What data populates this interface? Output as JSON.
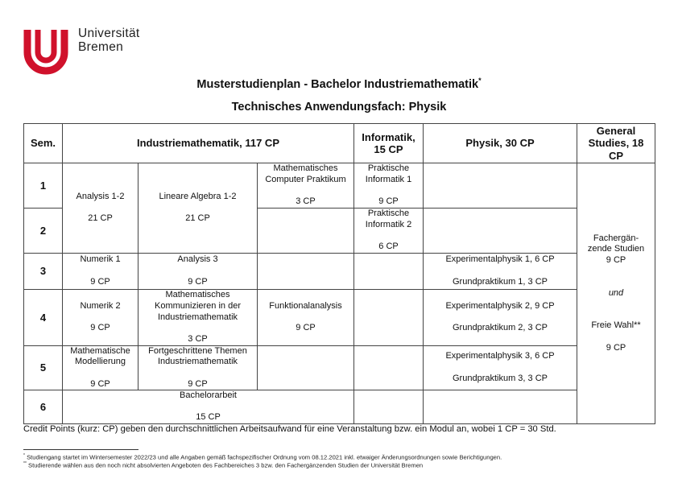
{
  "logo": {
    "line1": "Universität",
    "line2": "Bremen",
    "color": "#d0112b"
  },
  "title": "Musterstudienplan - Bachelor Industriemathematik",
  "title_mark": "*",
  "subtitle": "Technisches Anwendungsfach: Physik",
  "table": {
    "headers": {
      "sem": "Sem.",
      "im": "Industriemathematik, 117 CP",
      "inf": "Informatik,\n15 CP",
      "phys": "Physik, 30 CP",
      "gs": "General\nStudies, 18\nCP"
    },
    "semesters": [
      "1",
      "2",
      "3",
      "4",
      "5",
      "6"
    ],
    "analysis12": "Analysis 1-2\n\n21 CP",
    "linalg": "Lineare Algebra 1-2\n\n21 CP",
    "mcp": "Mathematisches\nComputer Praktikum\n\n3 CP",
    "pi1": "Praktische\nInformatik 1\n\n9 CP",
    "pi2": "Praktische\nInformatik 2\n\n6 CP",
    "numerik1": "Numerik 1\n\n9 CP",
    "analysis3": "Analysis 3\n\n9 CP",
    "exp1": "Experimentalphysik 1, 6 CP\n\nGrundpraktikum 1, 3 CP",
    "numerik2": "Numerik 2\n\n9 CP",
    "mk": "Mathematisches\nKommunizieren in der\nIndustriemathematik\n\n3 CP",
    "fa": "Funktionalanalysis\n\n9 CP",
    "exp2": "Experimentalphysik 2, 9 CP\n\nGrundpraktikum 2, 3 CP",
    "mm": "Mathematische\nModellierung\n\n9 CP",
    "ft": "Fortgeschrittene Themen\nIndustriemathematik\n\n9 CP",
    "exp3": "Experimentalphysik 3, 6 CP\n\nGrundpraktikum 3, 3 CP",
    "ba": "Bachelorarbeit\n\n15 CP",
    "gs_top": "Fachergän-\nzende Studien\n9 CP",
    "gs_und": "und",
    "gs_bottom": "Freie Wahl**\n\n9 CP"
  },
  "credit_note": "Credit Points (kurz: CP) geben den durchschnittlichen Arbeitsaufwand für eine Veranstaltung bzw. ein Modul an, wobei 1 CP = 30 Std.",
  "footnotes": [
    {
      "mark": "*",
      "text": "Studiengang startet im Wintersemester 2022/23 und alle Angaben gemäß fachspezifischer Ordnung vom 08.12.2021 inkl. etwaiger Änderungsordnungen sowie Berichtigungen."
    },
    {
      "mark": "**",
      "text": "Studierende wählen aus den noch nicht absolvierten Angeboten des Fachbereiches 3 bzw. den Fachergänzenden Studien der Universität Bremen"
    }
  ]
}
